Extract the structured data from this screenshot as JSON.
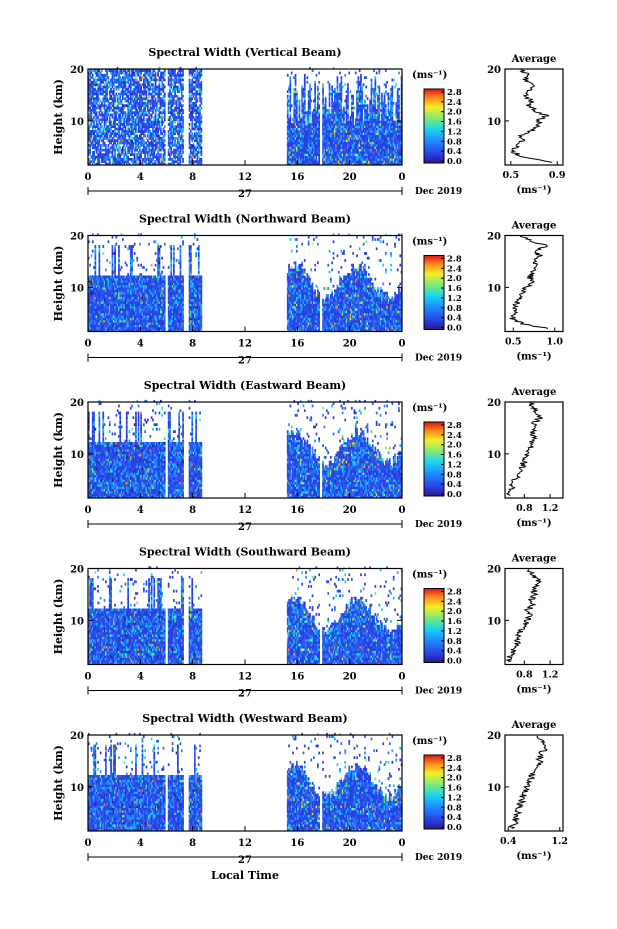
{
  "figure": {
    "date_label": "Dec 2019",
    "xlabel_bottom": "Local Time",
    "colorbar_unit": "(ms⁻¹)",
    "average_title": "Average",
    "average_xunit": "(ms⁻¹)",
    "height_label": "Height (km)",
    "day_label": "27"
  },
  "chart_data": [
    {
      "type": "heatmap",
      "title": "Spectral Width (Vertical Beam)",
      "ylabel": "Height (km)",
      "x_ticks": [
        "0",
        "4",
        "8",
        "12",
        "16",
        "20",
        "0"
      ],
      "y_ticks": [
        "10",
        "20"
      ],
      "x_range_hours": [
        0,
        24
      ],
      "y_range_km": [
        1.5,
        20
      ],
      "data_gaps_hours": [
        [
          5.8,
          6.0
        ],
        [
          7.2,
          7.6
        ],
        [
          8.6,
          15.1
        ],
        [
          17.6,
          17.8
        ]
      ],
      "colorbar_ticks": [
        "0.0",
        "0.4",
        "0.8",
        "1.2",
        "1.6",
        "2.0",
        "2.4",
        "2.8"
      ],
      "colorbar_range": [
        0.0,
        3.0
      ],
      "average": {
        "x_ticks": [
          "0.5",
          "0.9"
        ],
        "xlim": [
          0.45,
          0.95
        ],
        "y_ticks": [
          "10",
          "20"
        ],
        "profile": [
          [
            2,
            0.85
          ],
          [
            3,
            0.6
          ],
          [
            4,
            0.52
          ],
          [
            5,
            0.55
          ],
          [
            6,
            0.6
          ],
          [
            7,
            0.58
          ],
          [
            8,
            0.66
          ],
          [
            9,
            0.72
          ],
          [
            10,
            0.74
          ],
          [
            11,
            0.8
          ],
          [
            12,
            0.7
          ],
          [
            13,
            0.66
          ],
          [
            14,
            0.68
          ],
          [
            15,
            0.62
          ],
          [
            16,
            0.66
          ],
          [
            17,
            0.7
          ],
          [
            18,
            0.62
          ],
          [
            19,
            0.64
          ],
          [
            20,
            0.58
          ]
        ]
      }
    },
    {
      "type": "heatmap",
      "title": "Spectral Width (Northward Beam)",
      "ylabel": "Height (km)",
      "x_ticks": [
        "0",
        "4",
        "8",
        "12",
        "16",
        "20",
        "0"
      ],
      "y_ticks": [
        "10",
        "20"
      ],
      "x_range_hours": [
        0,
        24
      ],
      "y_range_km": [
        1.5,
        20
      ],
      "data_gaps_hours": [
        [
          5.8,
          6.0
        ],
        [
          7.2,
          7.6
        ],
        [
          8.6,
          15.1
        ],
        [
          17.6,
          17.8
        ]
      ],
      "colorbar_ticks": [
        "0.0",
        "0.4",
        "0.8",
        "1.2",
        "1.6",
        "2.0",
        "2.4",
        "2.8"
      ],
      "colorbar_range": [
        0.0,
        3.0
      ],
      "average": {
        "x_ticks": [
          "0.5",
          "1.0"
        ],
        "xlim": [
          0.4,
          1.1
        ],
        "y_ticks": [
          "10",
          "20"
        ],
        "profile": [
          [
            2,
            0.95
          ],
          [
            3,
            0.6
          ],
          [
            4,
            0.5
          ],
          [
            5,
            0.5
          ],
          [
            6,
            0.52
          ],
          [
            7,
            0.55
          ],
          [
            8,
            0.6
          ],
          [
            9,
            0.62
          ],
          [
            10,
            0.66
          ],
          [
            11,
            0.72
          ],
          [
            12,
            0.7
          ],
          [
            13,
            0.74
          ],
          [
            14,
            0.8
          ],
          [
            15,
            0.76
          ],
          [
            16,
            0.82
          ],
          [
            17,
            0.78
          ],
          [
            18,
            0.9
          ],
          [
            19,
            0.7
          ],
          [
            20,
            0.6
          ]
        ]
      }
    },
    {
      "type": "heatmap",
      "title": "Spectral Width (Eastward Beam)",
      "ylabel": "Height (km)",
      "x_ticks": [
        "0",
        "4",
        "8",
        "12",
        "16",
        "20",
        "0"
      ],
      "y_ticks": [
        "10",
        "20"
      ],
      "x_range_hours": [
        0,
        24
      ],
      "y_range_km": [
        1.5,
        20
      ],
      "data_gaps_hours": [
        [
          5.8,
          6.0
        ],
        [
          7.2,
          7.6
        ],
        [
          8.6,
          15.1
        ],
        [
          17.6,
          17.8
        ]
      ],
      "colorbar_ticks": [
        "0.0",
        "0.4",
        "0.8",
        "1.2",
        "1.6",
        "2.0",
        "2.4",
        "2.8"
      ],
      "colorbar_range": [
        0.0,
        3.0
      ],
      "average": {
        "x_ticks": [
          "0.8",
          "1.2"
        ],
        "xlim": [
          0.5,
          1.4
        ],
        "y_ticks": [
          "10",
          "20"
        ],
        "profile": [
          [
            2,
            0.55
          ],
          [
            3,
            0.6
          ],
          [
            4,
            0.62
          ],
          [
            5,
            0.66
          ],
          [
            6,
            0.7
          ],
          [
            7,
            0.74
          ],
          [
            8,
            0.78
          ],
          [
            9,
            0.82
          ],
          [
            10,
            0.86
          ],
          [
            11,
            0.9
          ],
          [
            12,
            0.88
          ],
          [
            13,
            0.95
          ],
          [
            14,
            0.92
          ],
          [
            15,
            1.0
          ],
          [
            16,
            0.96
          ],
          [
            17,
            1.05
          ],
          [
            18,
            1.0
          ],
          [
            19,
            0.95
          ],
          [
            20,
            0.9
          ]
        ]
      }
    },
    {
      "type": "heatmap",
      "title": "Spectral Width (Southward Beam)",
      "ylabel": "Height (km)",
      "x_ticks": [
        "0",
        "4",
        "8",
        "12",
        "16",
        "20",
        "0"
      ],
      "y_ticks": [
        "10",
        "20"
      ],
      "x_range_hours": [
        0,
        24
      ],
      "y_range_km": [
        1.5,
        20
      ],
      "data_gaps_hours": [
        [
          5.8,
          6.0
        ],
        [
          7.2,
          7.6
        ],
        [
          8.6,
          15.1
        ],
        [
          17.6,
          17.8
        ]
      ],
      "colorbar_ticks": [
        "0.0",
        "0.4",
        "0.8",
        "1.2",
        "1.6",
        "2.0",
        "2.4",
        "2.8"
      ],
      "colorbar_range": [
        0.0,
        3.0
      ],
      "average": {
        "x_ticks": [
          "0.8",
          "1.2"
        ],
        "xlim": [
          0.5,
          1.4
        ],
        "y_ticks": [
          "10",
          "20"
        ],
        "profile": [
          [
            2,
            0.55
          ],
          [
            3,
            0.58
          ],
          [
            4,
            0.62
          ],
          [
            5,
            0.66
          ],
          [
            6,
            0.7
          ],
          [
            7,
            0.72
          ],
          [
            8,
            0.76
          ],
          [
            9,
            0.8
          ],
          [
            10,
            0.84
          ],
          [
            11,
            0.88
          ],
          [
            12,
            0.86
          ],
          [
            13,
            0.92
          ],
          [
            14,
            0.9
          ],
          [
            15,
            0.98
          ],
          [
            16,
            0.94
          ],
          [
            17,
            1.02
          ],
          [
            18,
            1.0
          ],
          [
            19,
            0.92
          ],
          [
            20,
            0.88
          ]
        ]
      }
    },
    {
      "type": "heatmap",
      "title": "Spectral Width (Westward Beam)",
      "ylabel": "Height (km)",
      "xlabel": "Local Time",
      "x_ticks": [
        "0",
        "4",
        "8",
        "12",
        "16",
        "20",
        "0"
      ],
      "y_ticks": [
        "10",
        "20"
      ],
      "x_range_hours": [
        0,
        24
      ],
      "y_range_km": [
        1.5,
        20
      ],
      "data_gaps_hours": [
        [
          5.8,
          6.0
        ],
        [
          7.2,
          7.6
        ],
        [
          8.6,
          15.1
        ],
        [
          17.6,
          17.8
        ]
      ],
      "colorbar_ticks": [
        "0.0",
        "0.4",
        "0.8",
        "1.2",
        "1.6",
        "2.0",
        "2.4",
        "2.8"
      ],
      "colorbar_range": [
        0.0,
        3.0
      ],
      "average": {
        "x_ticks": [
          "0.4",
          "1.2"
        ],
        "xlim": [
          0.35,
          1.25
        ],
        "y_ticks": [
          "10",
          "20"
        ],
        "profile": [
          [
            2,
            0.45
          ],
          [
            3,
            0.5
          ],
          [
            4,
            0.52
          ],
          [
            5,
            0.55
          ],
          [
            6,
            0.58
          ],
          [
            7,
            0.6
          ],
          [
            8,
            0.62
          ],
          [
            9,
            0.66
          ],
          [
            10,
            0.7
          ],
          [
            11,
            0.74
          ],
          [
            12,
            0.76
          ],
          [
            13,
            0.82
          ],
          [
            14,
            0.86
          ],
          [
            15,
            0.9
          ],
          [
            16,
            0.88
          ],
          [
            17,
            0.95
          ],
          [
            18,
            0.98
          ],
          [
            19,
            0.9
          ],
          [
            20,
            0.8
          ]
        ]
      }
    }
  ]
}
